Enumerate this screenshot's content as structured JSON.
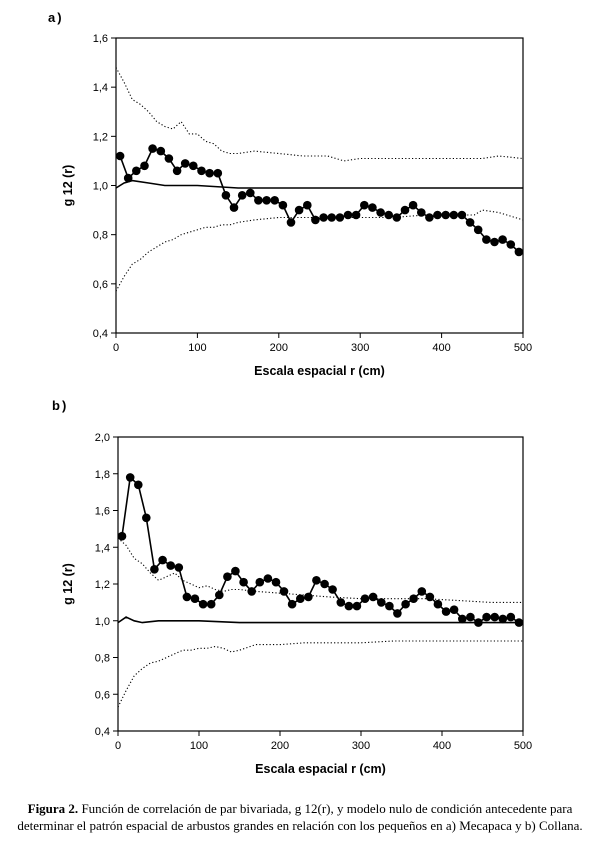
{
  "panels": [
    {
      "id": "a",
      "label": "a)"
    },
    {
      "id": "b",
      "label": "b)"
    }
  ],
  "caption": {
    "bold": "Figura 2.",
    "text": " Función de correlación de par bivariada, g 12(r), y modelo nulo de condición antecedente para determinar el patrón espacial de arbustos grandes en relación con los pequeños en a) Mecapaca y b) Collana."
  },
  "chart_data": [
    {
      "type": "line",
      "xlabel": "Escala espacial r (cm)",
      "ylabel": "g 12 (r)",
      "xlim": [
        0,
        500
      ],
      "ylim": [
        0.4,
        1.6
      ],
      "xticks": [
        0,
        100,
        200,
        300,
        400,
        500
      ],
      "yticks": [
        "0,4",
        "0,6",
        "0,8",
        "1,0",
        "1,2",
        "1,4",
        "1,6"
      ],
      "ytick_values": [
        0.4,
        0.6,
        0.8,
        1.0,
        1.2,
        1.4,
        1.6
      ],
      "grid": false,
      "series": [
        {
          "style": "markers",
          "x": [
            5,
            15,
            25,
            35,
            45,
            55,
            65,
            75,
            85,
            95,
            105,
            115,
            125,
            135,
            145,
            155,
            165,
            175,
            185,
            195,
            205,
            215,
            225,
            235,
            245,
            255,
            265,
            275,
            285,
            295,
            305,
            315,
            325,
            335,
            345,
            355,
            365,
            375,
            385,
            395,
            405,
            415,
            425,
            435,
            445,
            455,
            465,
            475,
            485,
            495
          ],
          "y": [
            1.12,
            1.03,
            1.06,
            1.08,
            1.15,
            1.14,
            1.11,
            1.06,
            1.09,
            1.08,
            1.06,
            1.05,
            1.05,
            0.96,
            0.91,
            0.96,
            0.97,
            0.94,
            0.94,
            0.94,
            0.92,
            0.85,
            0.9,
            0.92,
            0.86,
            0.87,
            0.87,
            0.87,
            0.88,
            0.88,
            0.92,
            0.91,
            0.89,
            0.88,
            0.87,
            0.9,
            0.92,
            0.89,
            0.87,
            0.88,
            0.88,
            0.88,
            0.88,
            0.85,
            0.82,
            0.78,
            0.77,
            0.78,
            0.76,
            0.73
          ]
        },
        {
          "style": "solid",
          "x": [
            0,
            10,
            20,
            40,
            60,
            100,
            150,
            200,
            250,
            300,
            350,
            400,
            450,
            500
          ],
          "y": [
            0.99,
            1.01,
            1.02,
            1.01,
            1.0,
            1.0,
            0.99,
            0.99,
            0.99,
            0.99,
            0.99,
            0.99,
            0.99,
            0.99
          ]
        },
        {
          "style": "dotted",
          "x": [
            0,
            10,
            20,
            30,
            40,
            50,
            60,
            70,
            80,
            90,
            100,
            110,
            120,
            130,
            140,
            150,
            170,
            200,
            230,
            260,
            280,
            300,
            340,
            380,
            420,
            450,
            470,
            500
          ],
          "y": [
            1.48,
            1.42,
            1.35,
            1.33,
            1.3,
            1.26,
            1.24,
            1.23,
            1.26,
            1.21,
            1.21,
            1.18,
            1.17,
            1.14,
            1.13,
            1.13,
            1.14,
            1.13,
            1.12,
            1.12,
            1.1,
            1.11,
            1.11,
            1.11,
            1.11,
            1.11,
            1.12,
            1.11
          ]
        },
        {
          "style": "dotted",
          "x": [
            0,
            10,
            20,
            30,
            40,
            50,
            60,
            70,
            80,
            90,
            100,
            110,
            120,
            130,
            140,
            150,
            170,
            200,
            230,
            260,
            280,
            300,
            340,
            380,
            420,
            440,
            450,
            470,
            500
          ],
          "y": [
            0.57,
            0.63,
            0.68,
            0.7,
            0.73,
            0.75,
            0.77,
            0.78,
            0.8,
            0.81,
            0.82,
            0.83,
            0.83,
            0.84,
            0.84,
            0.85,
            0.86,
            0.87,
            0.87,
            0.87,
            0.87,
            0.87,
            0.87,
            0.88,
            0.88,
            0.88,
            0.9,
            0.89,
            0.86
          ]
        }
      ]
    },
    {
      "type": "line",
      "xlabel": "Escala espacial r (cm)",
      "ylabel": "g 12 (r)",
      "xlim": [
        0,
        500
      ],
      "ylim": [
        0.4,
        2.0
      ],
      "xticks": [
        0,
        100,
        200,
        300,
        400,
        500
      ],
      "yticks": [
        "0,4",
        "0,6",
        "0,8",
        "1,0",
        "1,2",
        "1,4",
        "1,6",
        "1,8",
        "2,0"
      ],
      "ytick_values": [
        0.4,
        0.6,
        0.8,
        1.0,
        1.2,
        1.4,
        1.6,
        1.8,
        2.0
      ],
      "grid": false,
      "series": [
        {
          "style": "markers",
          "x": [
            5,
            15,
            25,
            35,
            45,
            55,
            65,
            75,
            85,
            95,
            105,
            115,
            125,
            135,
            145,
            155,
            165,
            175,
            185,
            195,
            205,
            215,
            225,
            235,
            245,
            255,
            265,
            275,
            285,
            295,
            305,
            315,
            325,
            335,
            345,
            355,
            365,
            375,
            385,
            395,
            405,
            415,
            425,
            435,
            445,
            455,
            465,
            475,
            485,
            495
          ],
          "y": [
            1.46,
            1.78,
            1.74,
            1.56,
            1.28,
            1.33,
            1.3,
            1.29,
            1.13,
            1.12,
            1.09,
            1.09,
            1.14,
            1.24,
            1.27,
            1.21,
            1.16,
            1.21,
            1.23,
            1.21,
            1.16,
            1.09,
            1.12,
            1.13,
            1.22,
            1.2,
            1.17,
            1.1,
            1.08,
            1.08,
            1.12,
            1.13,
            1.1,
            1.08,
            1.04,
            1.09,
            1.12,
            1.16,
            1.13,
            1.09,
            1.05,
            1.06,
            1.01,
            1.02,
            0.99,
            1.02,
            1.02,
            1.01,
            1.02,
            0.99
          ]
        },
        {
          "style": "solid",
          "x": [
            0,
            10,
            20,
            30,
            50,
            100,
            150,
            200,
            250,
            300,
            350,
            400,
            450,
            500
          ],
          "y": [
            0.99,
            1.02,
            1.0,
            0.99,
            1.0,
            1.0,
            0.99,
            0.99,
            0.99,
            0.99,
            0.99,
            0.99,
            0.99,
            0.99
          ]
        },
        {
          "style": "dotted",
          "x": [
            0,
            10,
            20,
            30,
            40,
            50,
            60,
            70,
            80,
            90,
            100,
            110,
            120,
            130,
            140,
            150,
            170,
            200,
            230,
            260,
            300,
            340,
            380,
            420,
            460,
            500
          ],
          "y": [
            1.45,
            1.41,
            1.34,
            1.31,
            1.26,
            1.22,
            1.24,
            1.26,
            1.22,
            1.2,
            1.18,
            1.19,
            1.17,
            1.16,
            1.17,
            1.17,
            1.16,
            1.15,
            1.14,
            1.13,
            1.12,
            1.12,
            1.12,
            1.11,
            1.1,
            1.1
          ]
        },
        {
          "style": "dotted",
          "x": [
            0,
            10,
            20,
            30,
            40,
            50,
            60,
            70,
            80,
            90,
            100,
            110,
            120,
            130,
            140,
            150,
            170,
            200,
            230,
            260,
            300,
            340,
            380,
            420,
            460,
            500
          ],
          "y": [
            0.53,
            0.62,
            0.7,
            0.74,
            0.77,
            0.78,
            0.8,
            0.82,
            0.84,
            0.84,
            0.85,
            0.85,
            0.86,
            0.85,
            0.83,
            0.84,
            0.87,
            0.87,
            0.88,
            0.88,
            0.88,
            0.89,
            0.89,
            0.89,
            0.89,
            0.89
          ]
        }
      ]
    }
  ]
}
